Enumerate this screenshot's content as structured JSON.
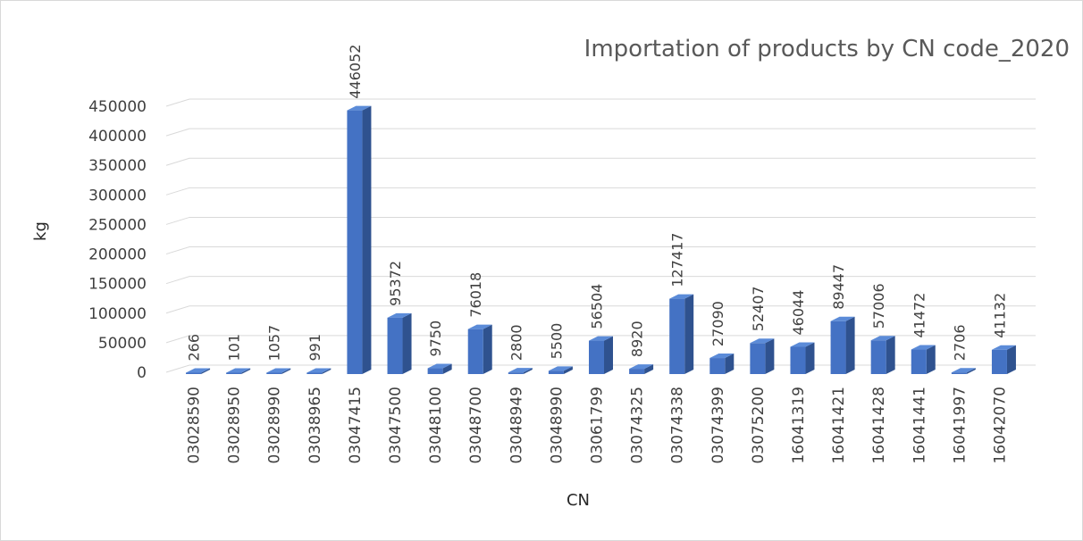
{
  "chart_data": {
    "type": "bar",
    "title": "Importation of products by CN code_2020",
    "xlabel": "CN",
    "ylabel": "kg",
    "ylim": [
      0,
      450000
    ],
    "y_ticks": [
      "0",
      "50000",
      "100000",
      "150000",
      "200000",
      "250000",
      "300000",
      "350000",
      "400000",
      "450000"
    ],
    "grid": true,
    "legend": "none",
    "bar_color": "#4472c4",
    "categories": [
      "03028590",
      "03028950",
      "03028990",
      "03038965",
      "03047415",
      "03047500",
      "03048100",
      "03048700",
      "03048949",
      "03048990",
      "03061799",
      "03074325",
      "03074338",
      "03074399",
      "03075200",
      "16041319",
      "16041421",
      "16041428",
      "16041441",
      "16041997",
      "16042070"
    ],
    "values": [
      266,
      101,
      1057,
      991,
      446052,
      95372,
      9750,
      76018,
      2800,
      5500,
      56504,
      8920,
      127417,
      27090,
      52407,
      46044,
      89447,
      57006,
      41472,
      2706,
      41132
    ],
    "data_labels": [
      "266",
      "101",
      "1057",
      "991",
      "446052",
      "95372",
      "9750",
      "76018",
      "2800",
      "5500",
      "56504",
      "8920",
      "127417",
      "27090",
      "52407",
      "46044",
      "89447",
      "57006",
      "41472",
      "2706",
      "41132"
    ]
  }
}
